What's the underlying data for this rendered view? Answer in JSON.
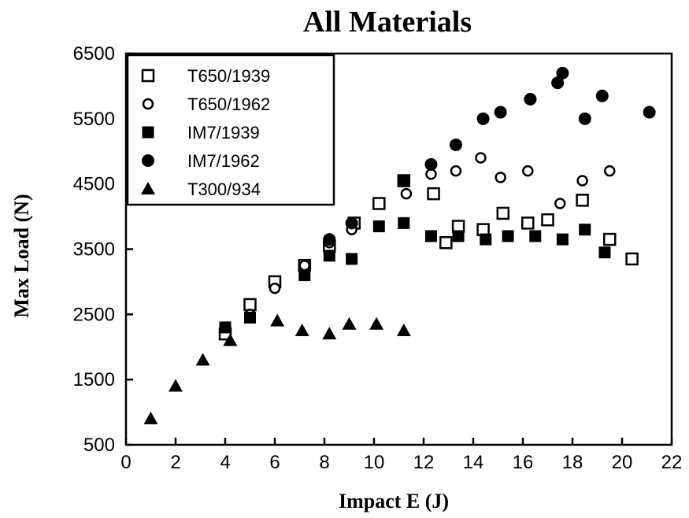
{
  "chart_data": {
    "type": "scatter",
    "title": "All Materials",
    "xlabel": "Impact E (J)",
    "ylabel": "Max  Load  (N)",
    "xlim": [
      0,
      22
    ],
    "ylim": [
      500,
      6500
    ],
    "xticks": [
      0,
      2,
      4,
      6,
      8,
      10,
      12,
      14,
      16,
      18,
      20,
      22
    ],
    "yticks": [
      500,
      1500,
      2500,
      3500,
      4500,
      5500,
      6500
    ],
    "legend_position": "top-left",
    "series": [
      {
        "name": "T650/1939",
        "marker": "open-square",
        "x": [
          4.0,
          5.0,
          6.0,
          7.2,
          8.2,
          9.2,
          10.2,
          11.2,
          12.4,
          12.9,
          13.4,
          14.4,
          15.2,
          16.2,
          17.0,
          18.4,
          19.5,
          20.4
        ],
        "y": [
          2200,
          2650,
          3000,
          3250,
          3550,
          3900,
          4200,
          4550,
          4350,
          3600,
          3850,
          3800,
          4050,
          3900,
          3950,
          4250,
          3650,
          3350
        ]
      },
      {
        "name": "T650/1962",
        "marker": "open-circle",
        "x": [
          5.0,
          6.0,
          7.2,
          8.2,
          9.1,
          11.3,
          12.3,
          13.3,
          14.3,
          15.1,
          16.2,
          17.5,
          18.4,
          19.5
        ],
        "y": [
          2500,
          2900,
          3250,
          3600,
          3800,
          4350,
          4650,
          4700,
          4900,
          4600,
          4700,
          4200,
          4550,
          4700
        ]
      },
      {
        "name": "IM7/1939",
        "marker": "filled-square",
        "x": [
          4.0,
          5.0,
          7.2,
          8.2,
          9.1,
          10.2,
          11.2,
          12.3,
          13.4,
          14.5,
          15.4,
          16.5,
          17.6,
          18.5,
          19.3
        ],
        "y": [
          2300,
          2450,
          3100,
          3400,
          3350,
          3850,
          3900,
          3700,
          3700,
          3650,
          3700,
          3700,
          3650,
          3800,
          3450
        ]
      },
      {
        "name": "IM7/1962",
        "marker": "filled-circle",
        "x": [
          8.2,
          9.1,
          11.2,
          12.3,
          13.3,
          14.4,
          15.1,
          16.3,
          17.4,
          17.6,
          18.5,
          19.2,
          21.1
        ],
        "y": [
          3650,
          3900,
          4550,
          4800,
          5100,
          5500,
          5600,
          5800,
          6050,
          6200,
          5500,
          5850,
          5600
        ]
      },
      {
        "name": "T300/934",
        "marker": "filled-triangle",
        "x": [
          1.0,
          2.0,
          3.1,
          4.2,
          6.1,
          7.1,
          8.2,
          9.0,
          10.1,
          11.2
        ],
        "y": [
          900,
          1400,
          1800,
          2100,
          2400,
          2250,
          2200,
          2350,
          2350,
          2250
        ]
      }
    ]
  }
}
